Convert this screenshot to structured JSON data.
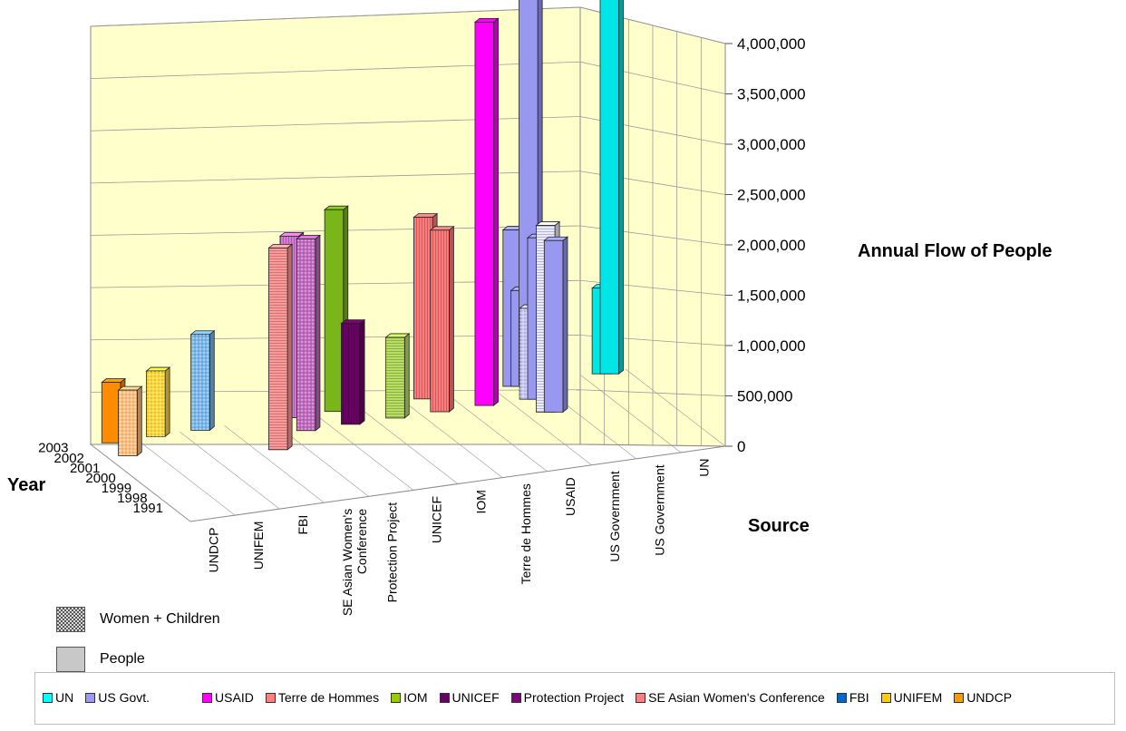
{
  "chart_data": {
    "type": "bar",
    "variant": "3d-bar",
    "title": "",
    "ylabel": "Annual Flow of People",
    "xlabel": "Source",
    "zlabel": "Year",
    "ylim": [
      0,
      4000000
    ],
    "yticks": [
      "0",
      "500,000",
      "1,000,000",
      "1,500,000",
      "2,000,000",
      "2,500,000",
      "3,000,000",
      "3,500,000",
      "4,000,000"
    ],
    "categories": [
      "UNDCP",
      "UNIFEM",
      "FBI",
      "SE Asian Women's Conference",
      "Protection Project",
      "UNICEF",
      "IOM",
      "Terre de Hommes",
      "USAID",
      "US Government",
      "US Government",
      "UN"
    ],
    "years": [
      "2003",
      "2002",
      "2001",
      "2000",
      "1999",
      "1998",
      "1991"
    ],
    "bars": [
      {
        "source": "UNDCP",
        "year": "2003",
        "value": 600000,
        "color": "#ff8c00",
        "pattern": "solid"
      },
      {
        "source": "UNDCP",
        "year": "2002",
        "value": 650000,
        "color": "#ffc080",
        "pattern": "dots"
      },
      {
        "source": "UNIFEM",
        "year": "2003",
        "value": 650000,
        "color": "#ffd93a",
        "pattern": "dots"
      },
      {
        "source": "FBI",
        "year": "2003",
        "value": 950000,
        "color": "#7ab8ec",
        "pattern": "dots"
      },
      {
        "source": "SE Asian Women's Conference",
        "year": "2001",
        "value": 2000000,
        "color": "#ff9999",
        "pattern": "hstripe"
      },
      {
        "source": "Protection Project",
        "year": "2003",
        "value": 1800000,
        "color": "#d87ad8",
        "pattern": "vstripe"
      },
      {
        "source": "Protection Project",
        "year": "2002",
        "value": 1900000,
        "color": "#c06ac0",
        "pattern": "dots"
      },
      {
        "source": "UNICEF",
        "year": "2003",
        "value": 2000000,
        "color": "#7ab61a",
        "pattern": "solid"
      },
      {
        "source": "UNICEF",
        "year": "2002",
        "value": 1000000,
        "color": "#6a0066",
        "pattern": "vstripe"
      },
      {
        "source": "IOM",
        "year": "2002",
        "value": 800000,
        "color": "#b8e060",
        "pattern": "hstripe"
      },
      {
        "source": "Terre de Hommes",
        "year": "2003",
        "value": 1800000,
        "color": "#ff7a7a",
        "pattern": "vstripe"
      },
      {
        "source": "Terre de Hommes",
        "year": "2002",
        "value": 1800000,
        "color": "#ff7a7a",
        "pattern": "vstripe"
      },
      {
        "source": "USAID",
        "year": "2002",
        "value": 3800000,
        "color": "#ff00ff",
        "pattern": "solid"
      },
      {
        "source": "US Government",
        "year": "2003",
        "value": 1550000,
        "color": "#9898f0",
        "pattern": "solid"
      },
      {
        "source": "US Government",
        "year": "2003",
        "value": 950000,
        "color": "#9898f0",
        "pattern": "solid"
      },
      {
        "source": "US Government",
        "year": "2003",
        "value": 4000000,
        "color": "#9898f0",
        "pattern": "solid"
      },
      {
        "source": "US Government",
        "year": "2002",
        "value": 900000,
        "color": "#c8c8f8",
        "pattern": "dots"
      },
      {
        "source": "US Government",
        "year": "2002",
        "value": 1600000,
        "color": "#9898f0",
        "pattern": "solid"
      },
      {
        "source": "US Government",
        "year": "2001",
        "value": 1850000,
        "color": "#ebebff",
        "pattern": "hstripe"
      },
      {
        "source": "US Government",
        "year": "2001",
        "value": 1700000,
        "color": "#9898f0",
        "pattern": "solid"
      },
      {
        "source": "UN",
        "year": "2003",
        "value": 850000,
        "color": "#00e5e5",
        "pattern": "solid"
      },
      {
        "source": "UN",
        "year": "2003",
        "value": 4000000,
        "color": "#00e5e5",
        "pattern": "solid"
      }
    ],
    "legend": [
      {
        "label": "UN",
        "color": "#00ffff"
      },
      {
        "label": "US Govt.",
        "color": "#9999ff"
      },
      {
        "label": "USAID",
        "color": "#ff00ff"
      },
      {
        "label": "Terre de Hommes",
        "color": "#ff7f7f"
      },
      {
        "label": "IOM",
        "color": "#99cc00"
      },
      {
        "label": "UNICEF",
        "color": "#660066"
      },
      {
        "label": "Protection Project",
        "color": "#800080"
      },
      {
        "label": "SE Asian Women's Conference",
        "color": "#ff8080"
      },
      {
        "label": "FBI",
        "color": "#0066cc"
      },
      {
        "label": "UNIFEM",
        "color": "#ffcc00"
      },
      {
        "label": "UNDCP",
        "color": "#ff9900"
      }
    ],
    "pattern_legend": [
      {
        "label": "Women + Children",
        "pattern": "checker"
      },
      {
        "label": "People",
        "pattern": "solid-gray"
      }
    ],
    "legend_placement": "bottom",
    "grid": true,
    "wall_color": "#ffffcc"
  }
}
